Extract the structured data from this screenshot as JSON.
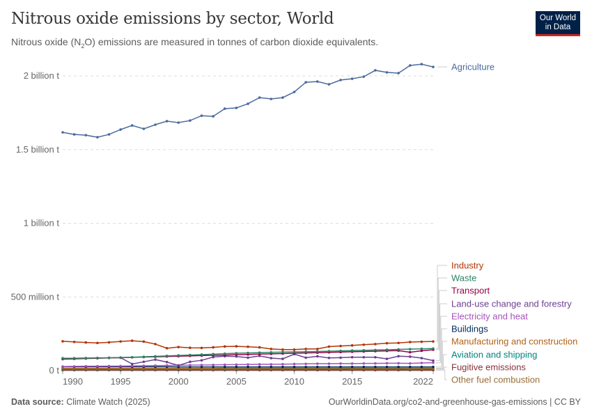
{
  "header": {
    "title": "Nitrous oxide emissions by sector, World",
    "subtitle_pre": "Nitrous oxide (N",
    "subtitle_sub": "2",
    "subtitle_post": "O) emissions are measured in tonnes of carbon dioxide equivalents.",
    "logo_line1": "Our World",
    "logo_line2": "in Data"
  },
  "footer": {
    "source_label": "Data source:",
    "source": "Climate Watch (2025)",
    "url_license": "OurWorldinData.org/co2-and-greenhouse-gas-emissions | CC BY"
  },
  "chart_data": {
    "type": "line",
    "title": "Nitrous oxide emissions by sector, World",
    "value_unit": "million t",
    "x": [
      1990,
      1991,
      1992,
      1993,
      1994,
      1995,
      1996,
      1997,
      1998,
      1999,
      2000,
      2001,
      2002,
      2003,
      2004,
      2005,
      2006,
      2007,
      2008,
      2009,
      2010,
      2011,
      2012,
      2013,
      2014,
      2015,
      2016,
      2017,
      2018,
      2019,
      2020,
      2021,
      2022
    ],
    "xticks": [
      {
        "value": 1990,
        "label": "1990"
      },
      {
        "value": 1995,
        "label": "1995"
      },
      {
        "value": 2000,
        "label": "2000"
      },
      {
        "value": 2005,
        "label": "2005"
      },
      {
        "value": 2010,
        "label": "2010"
      },
      {
        "value": 2015,
        "label": "2015"
      },
      {
        "value": 2022,
        "label": "2022"
      }
    ],
    "yticks": [
      {
        "value": 0,
        "label": "0 t"
      },
      {
        "value": 500,
        "label": "500 million t"
      },
      {
        "value": 1000,
        "label": "1 billion t"
      },
      {
        "value": 1500,
        "label": "1.5 billion t"
      },
      {
        "value": 2000,
        "label": "2 billion t"
      }
    ],
    "ylim": [
      0,
      2100
    ],
    "grid": "horizontal dashed",
    "legend": "right, line-end labels",
    "series": [
      {
        "name": "Agriculture",
        "color": "#4c6a9c",
        "values": [
          1617,
          1603,
          1598,
          1584,
          1603,
          1636,
          1664,
          1641,
          1669,
          1693,
          1683,
          1697,
          1730,
          1726,
          1778,
          1783,
          1811,
          1853,
          1844,
          1853,
          1891,
          1957,
          1962,
          1943,
          1972,
          1981,
          1995,
          2038,
          2024,
          2019,
          2071,
          2080,
          2061
        ]
      },
      {
        "name": "Industry",
        "color": "#b13507",
        "values": [
          199,
          195,
          191,
          188,
          192,
          198,
          203,
          197,
          180,
          152,
          160,
          155,
          154,
          158,
          164,
          165,
          162,
          158,
          147,
          143,
          143,
          147,
          147,
          163,
          167,
          171,
          176,
          180,
          186,
          188,
          194,
          196,
          198
        ]
      },
      {
        "name": "Waste",
        "color": "#2c8465",
        "values": [
          83,
          84,
          85,
          86,
          87,
          89,
          91,
          94,
          97,
          100,
          103,
          106,
          109,
          112,
          115,
          118,
          120,
          122,
          124,
          126,
          127,
          128,
          130,
          132,
          134,
          136,
          138,
          140,
          142,
          144,
          146,
          148,
          150
        ]
      },
      {
        "name": "Transport",
        "color": "#970046",
        "values": [
          78,
          80,
          82,
          84,
          86,
          88,
          90,
          92,
          94,
          96,
          98,
          100,
          102,
          104,
          106,
          108,
          110,
          112,
          114,
          116,
          118,
          120,
          122,
          124,
          126,
          128,
          130,
          132,
          134,
          136,
          125,
          135,
          142
        ]
      },
      {
        "name": "Land-use change and forestry",
        "color": "#6d3e91",
        "values": [
          84,
          84,
          85,
          86,
          87,
          88,
          45,
          60,
          75,
          58,
          35,
          60,
          70,
          92,
          98,
          96,
          88,
          100,
          85,
          80,
          112,
          88,
          97,
          86,
          88,
          91,
          91,
          91,
          80,
          98,
          95,
          85,
          68
        ]
      },
      {
        "name": "Electricity and heat",
        "color": "#a652ba",
        "values": [
          28,
          29,
          30,
          30,
          31,
          31,
          32,
          33,
          34,
          35,
          36,
          37,
          38,
          39,
          40,
          41,
          42,
          43,
          43,
          44,
          45,
          46,
          47,
          47,
          48,
          48,
          49,
          49,
          50,
          50,
          49,
          52,
          54
        ]
      },
      {
        "name": "Buildings",
        "color": "#00295b",
        "values": [
          26,
          26,
          26,
          26,
          26,
          26,
          26,
          26,
          26,
          26,
          25,
          25,
          25,
          25,
          25,
          25,
          25,
          25,
          25,
          25,
          25,
          25,
          25,
          25,
          25,
          25,
          25,
          25,
          25,
          25,
          25,
          25,
          25
        ]
      },
      {
        "name": "Manufacturing and construction",
        "color": "#b16214",
        "values": [
          15,
          15,
          15,
          15,
          15,
          15,
          15,
          15,
          15,
          15,
          15,
          15,
          15,
          15,
          16,
          16,
          16,
          16,
          16,
          16,
          16,
          16,
          16,
          16,
          16,
          16,
          16,
          16,
          16,
          16,
          16,
          16,
          16
        ]
      },
      {
        "name": "Aviation and shipping",
        "color": "#00847e",
        "values": [
          8,
          8,
          8,
          8,
          8,
          8,
          8,
          8,
          9,
          9,
          9,
          9,
          9,
          9,
          9,
          9,
          10,
          10,
          10,
          10,
          10,
          10,
          10,
          10,
          10,
          11,
          11,
          11,
          11,
          11,
          9,
          10,
          11
        ]
      },
      {
        "name": "Fugitive emissions",
        "color": "#883039",
        "values": [
          5,
          5,
          5,
          5,
          5,
          5,
          5,
          5,
          5,
          5,
          5,
          5,
          5,
          5,
          5,
          5,
          5,
          5,
          5,
          5,
          5,
          5,
          5,
          5,
          5,
          5,
          5,
          5,
          5,
          5,
          5,
          5,
          5
        ]
      },
      {
        "name": "Other fuel combustion",
        "color": "#996d39",
        "values": [
          3,
          3,
          3,
          3,
          3,
          3,
          3,
          3,
          3,
          3,
          3,
          3,
          3,
          3,
          3,
          3,
          3,
          3,
          3,
          3,
          3,
          3,
          3,
          3,
          3,
          3,
          3,
          3,
          3,
          3,
          3,
          3,
          3
        ]
      }
    ]
  }
}
